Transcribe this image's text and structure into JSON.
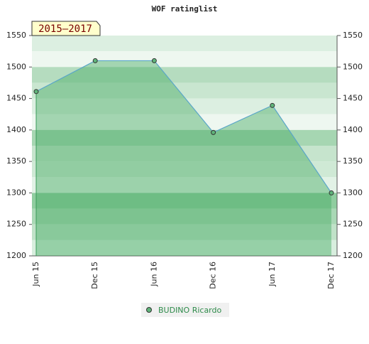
{
  "chart_data": {
    "type": "area",
    "title": "WOF ratinglist",
    "annotation": "2015–2017",
    "categories": [
      "Jun 15",
      "Dec 15",
      "Jun 16",
      "Dec 16",
      "Jun 17",
      "Dec 17"
    ],
    "series": [
      {
        "name": "BUDINO Ricardo",
        "color": "#5aa6c8",
        "values": [
          1461,
          1510,
          1510,
          1396,
          1439,
          1300
        ]
      }
    ],
    "ylim": [
      1200,
      1550
    ],
    "yticks": [
      1200,
      1250,
      1300,
      1350,
      1400,
      1450,
      1500,
      1550
    ],
    "y2lim": [
      1200,
      1550
    ],
    "y2ticks": [
      1200,
      1250,
      1300,
      1350,
      1400,
      1450,
      1500,
      1550
    ]
  }
}
